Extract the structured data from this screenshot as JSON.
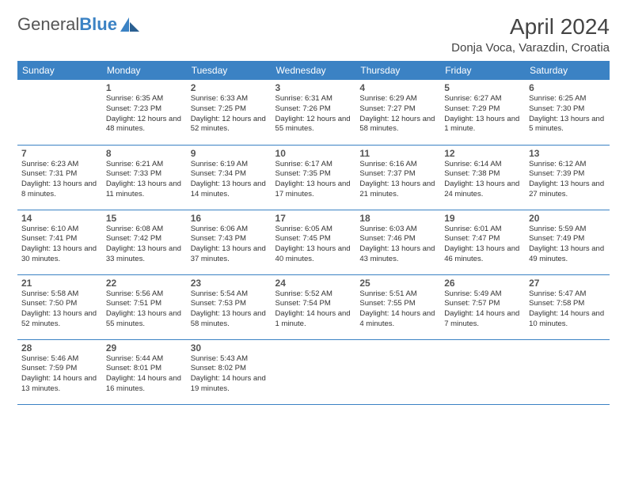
{
  "logo": {
    "text1": "General",
    "text2": "Blue"
  },
  "title": "April 2024",
  "location": "Donja Voca, Varazdin, Croatia",
  "colors": {
    "header_bg": "#3b82c4",
    "header_text": "#ffffff",
    "border": "#3b82c4",
    "body_text": "#333333"
  },
  "weekdays": [
    "Sunday",
    "Monday",
    "Tuesday",
    "Wednesday",
    "Thursday",
    "Friday",
    "Saturday"
  ],
  "weeks": [
    [
      null,
      {
        "num": "1",
        "sunrise": "6:35 AM",
        "sunset": "7:23 PM",
        "daylight": "12 hours and 48 minutes."
      },
      {
        "num": "2",
        "sunrise": "6:33 AM",
        "sunset": "7:25 PM",
        "daylight": "12 hours and 52 minutes."
      },
      {
        "num": "3",
        "sunrise": "6:31 AM",
        "sunset": "7:26 PM",
        "daylight": "12 hours and 55 minutes."
      },
      {
        "num": "4",
        "sunrise": "6:29 AM",
        "sunset": "7:27 PM",
        "daylight": "12 hours and 58 minutes."
      },
      {
        "num": "5",
        "sunrise": "6:27 AM",
        "sunset": "7:29 PM",
        "daylight": "13 hours and 1 minute."
      },
      {
        "num": "6",
        "sunrise": "6:25 AM",
        "sunset": "7:30 PM",
        "daylight": "13 hours and 5 minutes."
      }
    ],
    [
      {
        "num": "7",
        "sunrise": "6:23 AM",
        "sunset": "7:31 PM",
        "daylight": "13 hours and 8 minutes."
      },
      {
        "num": "8",
        "sunrise": "6:21 AM",
        "sunset": "7:33 PM",
        "daylight": "13 hours and 11 minutes."
      },
      {
        "num": "9",
        "sunrise": "6:19 AM",
        "sunset": "7:34 PM",
        "daylight": "13 hours and 14 minutes."
      },
      {
        "num": "10",
        "sunrise": "6:17 AM",
        "sunset": "7:35 PM",
        "daylight": "13 hours and 17 minutes."
      },
      {
        "num": "11",
        "sunrise": "6:16 AM",
        "sunset": "7:37 PM",
        "daylight": "13 hours and 21 minutes."
      },
      {
        "num": "12",
        "sunrise": "6:14 AM",
        "sunset": "7:38 PM",
        "daylight": "13 hours and 24 minutes."
      },
      {
        "num": "13",
        "sunrise": "6:12 AM",
        "sunset": "7:39 PM",
        "daylight": "13 hours and 27 minutes."
      }
    ],
    [
      {
        "num": "14",
        "sunrise": "6:10 AM",
        "sunset": "7:41 PM",
        "daylight": "13 hours and 30 minutes."
      },
      {
        "num": "15",
        "sunrise": "6:08 AM",
        "sunset": "7:42 PM",
        "daylight": "13 hours and 33 minutes."
      },
      {
        "num": "16",
        "sunrise": "6:06 AM",
        "sunset": "7:43 PM",
        "daylight": "13 hours and 37 minutes."
      },
      {
        "num": "17",
        "sunrise": "6:05 AM",
        "sunset": "7:45 PM",
        "daylight": "13 hours and 40 minutes."
      },
      {
        "num": "18",
        "sunrise": "6:03 AM",
        "sunset": "7:46 PM",
        "daylight": "13 hours and 43 minutes."
      },
      {
        "num": "19",
        "sunrise": "6:01 AM",
        "sunset": "7:47 PM",
        "daylight": "13 hours and 46 minutes."
      },
      {
        "num": "20",
        "sunrise": "5:59 AM",
        "sunset": "7:49 PM",
        "daylight": "13 hours and 49 minutes."
      }
    ],
    [
      {
        "num": "21",
        "sunrise": "5:58 AM",
        "sunset": "7:50 PM",
        "daylight": "13 hours and 52 minutes."
      },
      {
        "num": "22",
        "sunrise": "5:56 AM",
        "sunset": "7:51 PM",
        "daylight": "13 hours and 55 minutes."
      },
      {
        "num": "23",
        "sunrise": "5:54 AM",
        "sunset": "7:53 PM",
        "daylight": "13 hours and 58 minutes."
      },
      {
        "num": "24",
        "sunrise": "5:52 AM",
        "sunset": "7:54 PM",
        "daylight": "14 hours and 1 minute."
      },
      {
        "num": "25",
        "sunrise": "5:51 AM",
        "sunset": "7:55 PM",
        "daylight": "14 hours and 4 minutes."
      },
      {
        "num": "26",
        "sunrise": "5:49 AM",
        "sunset": "7:57 PM",
        "daylight": "14 hours and 7 minutes."
      },
      {
        "num": "27",
        "sunrise": "5:47 AM",
        "sunset": "7:58 PM",
        "daylight": "14 hours and 10 minutes."
      }
    ],
    [
      {
        "num": "28",
        "sunrise": "5:46 AM",
        "sunset": "7:59 PM",
        "daylight": "14 hours and 13 minutes."
      },
      {
        "num": "29",
        "sunrise": "5:44 AM",
        "sunset": "8:01 PM",
        "daylight": "14 hours and 16 minutes."
      },
      {
        "num": "30",
        "sunrise": "5:43 AM",
        "sunset": "8:02 PM",
        "daylight": "14 hours and 19 minutes."
      },
      null,
      null,
      null,
      null
    ]
  ],
  "labels": {
    "sunrise": "Sunrise:",
    "sunset": "Sunset:",
    "daylight": "Daylight:"
  }
}
